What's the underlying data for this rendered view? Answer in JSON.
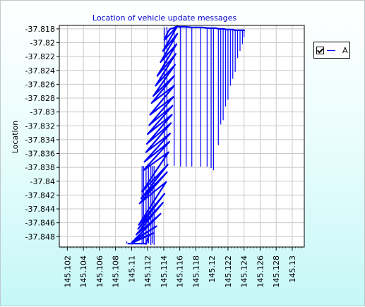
{
  "chart_data": {
    "type": "line",
    "title": "Location of vehicle update messages",
    "xlabel": "",
    "ylabel": "Location",
    "xlim": [
      145.101,
      145.1315
    ],
    "ylim": [
      -37.8495,
      -37.8175
    ],
    "x_ticks": [
      "145.102",
      "145.104",
      "145.106",
      "145.108",
      "145.11",
      "145.112",
      "145.114",
      "145.116",
      "145.118",
      "145.12",
      "145.122",
      "145.124",
      "145.126",
      "145.128",
      "145.13"
    ],
    "y_ticks": [
      "-37.818",
      "-37.82",
      "-37.822",
      "-37.824",
      "-37.826",
      "-37.828",
      "-37.83",
      "-37.832",
      "-37.834",
      "-37.836",
      "-37.838",
      "-37.84",
      "-37.842",
      "-37.844",
      "-37.846",
      "-37.848"
    ],
    "grid": true,
    "legend_position": "right",
    "series": [
      {
        "name": "A",
        "color": "#0000ff",
        "x": [
          145.1095,
          145.1118,
          145.1122,
          145.1099,
          145.1127,
          145.1101,
          145.1131,
          145.1104,
          145.1136,
          145.1106,
          145.1139,
          145.1108,
          145.1141,
          145.1109,
          145.1143,
          145.111,
          145.1144,
          145.1112,
          145.1145,
          145.1113,
          145.1146,
          145.1115,
          145.1147,
          145.1116,
          145.1148,
          145.1118,
          145.1149,
          145.1119,
          145.115,
          145.112,
          145.1151,
          145.1122,
          145.1152,
          145.1123,
          145.1153,
          145.1125,
          145.1153,
          145.1127,
          145.1154,
          145.113,
          145.1155,
          145.1132,
          145.1156,
          145.1136,
          145.1157,
          145.1139,
          145.1157,
          145.1141,
          145.1145,
          145.1148,
          145.1152,
          145.1155,
          145.1162,
          145.1168,
          145.1175,
          145.1182,
          145.1188,
          145.1195,
          145.1202,
          145.1205,
          145.1209,
          145.1212,
          145.1215,
          145.1218,
          145.1221,
          145.1223,
          145.1226,
          145.1229,
          145.1232,
          145.1234,
          145.1237,
          145.1239,
          145.1241
        ],
        "y": [
          -37.849,
          -37.849,
          -37.8477,
          -37.849,
          -37.8475,
          -37.8487,
          -37.8465,
          -37.8484,
          -37.8447,
          -37.8477,
          -37.8431,
          -37.8469,
          -37.8418,
          -37.8463,
          -37.8401,
          -37.8432,
          -37.8387,
          -37.8425,
          -37.8376,
          -37.8415,
          -37.8358,
          -37.8384,
          -37.8343,
          -37.8372,
          -37.8331,
          -37.8358,
          -37.8316,
          -37.8346,
          -37.8304,
          -37.8332,
          -37.8291,
          -37.8319,
          -37.8278,
          -37.8304,
          -37.8262,
          -37.8287,
          -37.8248,
          -37.8277,
          -37.8232,
          -37.8262,
          -37.8216,
          -37.8248,
          -37.8202,
          -37.8228,
          -37.8187,
          -37.8212,
          -37.8176,
          -37.8196,
          -37.8185,
          -37.818,
          -37.8179,
          -37.8177,
          -37.8177,
          -37.8177,
          -37.8178,
          -37.8178,
          -37.8178,
          -37.8179,
          -37.8179,
          -37.8179,
          -37.818,
          -37.818,
          -37.818,
          -37.8181,
          -37.8181,
          -37.8181,
          -37.8181,
          -37.8182,
          -37.8182,
          -37.8182,
          -37.8182,
          -37.8182,
          -37.8182
        ]
      }
    ],
    "spikes": [
      {
        "x": 145.1094,
        "y0": -37.849,
        "y1": -37.8487
      },
      {
        "x": 145.1113,
        "y0": -37.849,
        "y1": -37.8378
      },
      {
        "x": 145.1115,
        "y0": -37.849,
        "y1": -37.8378
      },
      {
        "x": 145.1118,
        "y0": -37.8492,
        "y1": -37.8378
      },
      {
        "x": 145.1121,
        "y0": -37.849,
        "y1": -37.8378
      },
      {
        "x": 145.1124,
        "y0": -37.8492,
        "y1": -37.8378
      },
      {
        "x": 145.1126,
        "y0": -37.849,
        "y1": -37.8378
      },
      {
        "x": 145.1128,
        "y0": -37.8492,
        "y1": -37.8378
      },
      {
        "x": 145.1141,
        "y0": -37.8178,
        "y1": -37.8378
      },
      {
        "x": 145.1144,
        "y0": -37.8177,
        "y1": -37.8378
      },
      {
        "x": 145.1153,
        "y0": -37.8177,
        "y1": -37.8378
      },
      {
        "x": 145.1161,
        "y0": -37.8177,
        "y1": -37.8379
      },
      {
        "x": 145.1168,
        "y0": -37.8178,
        "y1": -37.8379
      },
      {
        "x": 145.1175,
        "y0": -37.8178,
        "y1": -37.8379
      },
      {
        "x": 145.1186,
        "y0": -37.8178,
        "y1": -37.8379
      },
      {
        "x": 145.1194,
        "y0": -37.8178,
        "y1": -37.8379
      },
      {
        "x": 145.1199,
        "y0": -37.8179,
        "y1": -37.8381
      },
      {
        "x": 145.1202,
        "y0": -37.8179,
        "y1": -37.8384
      },
      {
        "x": 145.1208,
        "y0": -37.818,
        "y1": -37.8348
      },
      {
        "x": 145.1211,
        "y0": -37.818,
        "y1": -37.8318
      },
      {
        "x": 145.1214,
        "y0": -37.818,
        "y1": -37.8312
      },
      {
        "x": 145.1217,
        "y0": -37.818,
        "y1": -37.8292
      },
      {
        "x": 145.122,
        "y0": -37.8181,
        "y1": -37.8282
      },
      {
        "x": 145.1223,
        "y0": -37.8181,
        "y1": -37.8262
      },
      {
        "x": 145.1226,
        "y0": -37.8181,
        "y1": -37.8252
      },
      {
        "x": 145.1229,
        "y0": -37.8182,
        "y1": -37.8242
      },
      {
        "x": 145.1232,
        "y0": -37.8182,
        "y1": -37.8222
      },
      {
        "x": 145.1235,
        "y0": -37.8182,
        "y1": -37.8212
      },
      {
        "x": 145.1238,
        "y0": -37.8182,
        "y1": -37.8202
      },
      {
        "x": 145.124,
        "y0": -37.8182,
        "y1": -37.8192
      }
    ]
  },
  "legend": {
    "label": "A",
    "checked": true
  }
}
